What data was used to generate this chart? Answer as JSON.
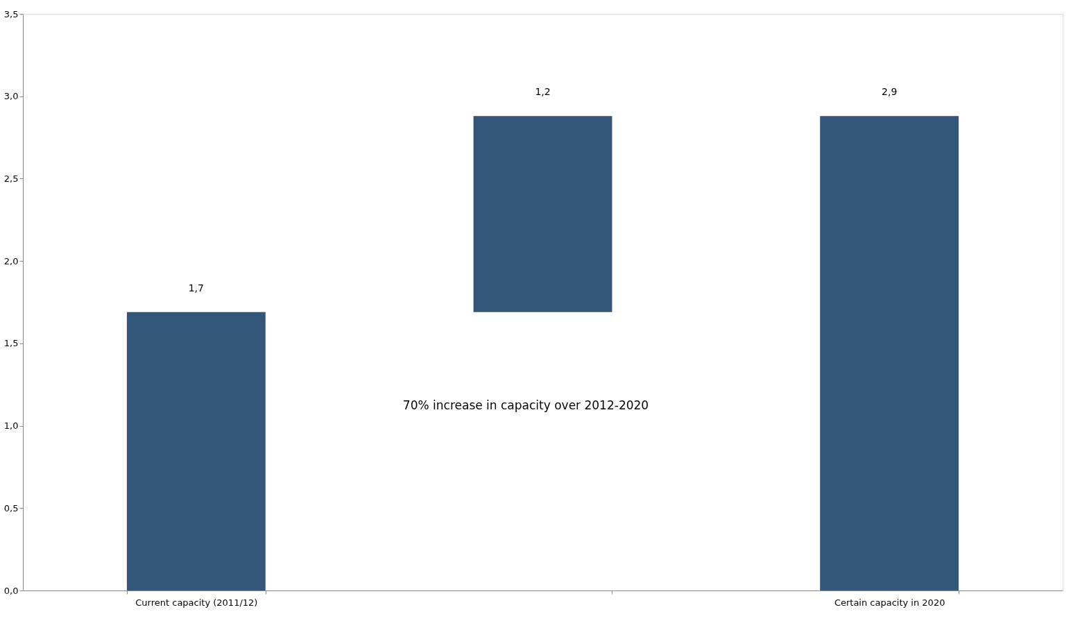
{
  "chart_data": {
    "type": "bar",
    "categories": [
      "Current capacity (2011/12)",
      null,
      "Certain capacity in 2020"
    ],
    "values": [
      1.69,
      1.19,
      2.88
    ],
    "base": [
      0,
      1.69,
      0
    ],
    "value_labels": [
      "1,7",
      "1,2",
      "2,9"
    ],
    "color": "#34567a",
    "ylim": [
      0,
      3.5
    ],
    "yticks": [
      {
        "value": 0,
        "label": "0,0"
      },
      {
        "value": 0.5,
        "label": "0,5"
      },
      {
        "value": 1,
        "label": "1,0"
      },
      {
        "value": 1.5,
        "label": "1,5"
      },
      {
        "value": 2,
        "label": "2,0"
      },
      {
        "value": 2.5,
        "label": "2,5"
      },
      {
        "value": 3,
        "label": "3,0"
      },
      {
        "value": 3.5,
        "label": "3,5"
      }
    ],
    "annotations": [
      "70% increase in capacity over 2012-2020"
    ],
    "grid": false
  }
}
